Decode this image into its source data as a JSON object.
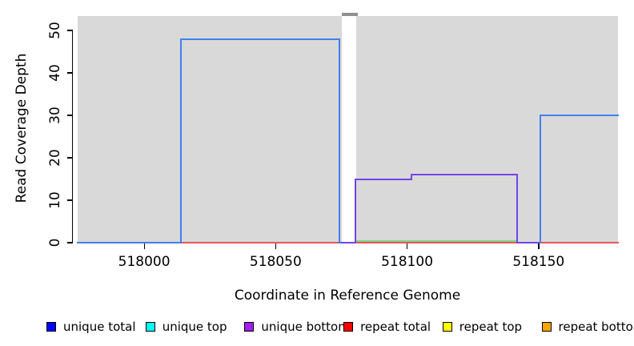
{
  "chart_data": {
    "type": "line",
    "subtype": "step-coverage-plot",
    "title": "",
    "xlabel": "Coordinate in Reference Genome",
    "ylabel": "Read Coverage Depth",
    "x_ticks": [
      518000,
      518050,
      518100,
      518150
    ],
    "y_ticks": [
      0,
      10,
      20,
      30,
      40,
      50
    ],
    "x_range": [
      517974.7,
      518180.2
    ],
    "y_range": [
      0,
      50
    ],
    "grid": false,
    "plot_background_color": "#ffffff",
    "shaded_blocks": [
      {
        "x0": 517974.7,
        "x1": 518075.2,
        "color": "#d9d9d9"
      },
      {
        "x0": 518080.7,
        "x1": 518180.2,
        "color": "#d9d9d9"
      }
    ],
    "offscale_top_marker": {
      "x0": 518075.2,
      "x1": 518081.3,
      "color": "#8f8f8f"
    },
    "series": [
      {
        "name": "repeat total",
        "color": "#e8545c",
        "paths": [
          [
            [
              517974.7,
              0
            ],
            [
              518180.2,
              0
            ]
          ]
        ]
      },
      {
        "name": "green zero line",
        "color": "#80d482",
        "paths": [
          [
            [
              518080.7,
              0
            ],
            [
              518141.8,
              0
            ]
          ]
        ]
      },
      {
        "name": "unique bottom",
        "color": "#7344e8",
        "paths": [
          [
            [
              518074.3,
              0
            ],
            [
              518080.2,
              0
            ],
            [
              518080.2,
              15
            ],
            [
              518101.7,
              15
            ],
            [
              518101.7,
              16
            ],
            [
              518141.8,
              16
            ],
            [
              518141.8,
              0
            ],
            [
              518150.8,
              0
            ]
          ]
        ]
      },
      {
        "name": "unique total",
        "color": "#4080ee",
        "paths": [
          [
            [
              517974.7,
              0
            ],
            [
              518014.0,
              0
            ],
            [
              518014.0,
              48
            ],
            [
              518074.3,
              48
            ],
            [
              518074.3,
              0
            ]
          ],
          [
            [
              518150.8,
              0
            ],
            [
              518150.8,
              30
            ],
            [
              518180.2,
              30
            ]
          ]
        ]
      }
    ],
    "legend": {
      "position": "bottom",
      "items": [
        {
          "label": "unique total",
          "color": "#0000ff"
        },
        {
          "label": "unique top",
          "color": "#00ffff"
        },
        {
          "label": "unique bottom",
          "color": "#a020f0"
        },
        {
          "label": "repeat total",
          "color": "#ff0000"
        },
        {
          "label": "repeat top",
          "color": "#ffff00"
        },
        {
          "label": "repeat bottom",
          "color": "#ffa500"
        }
      ]
    }
  }
}
